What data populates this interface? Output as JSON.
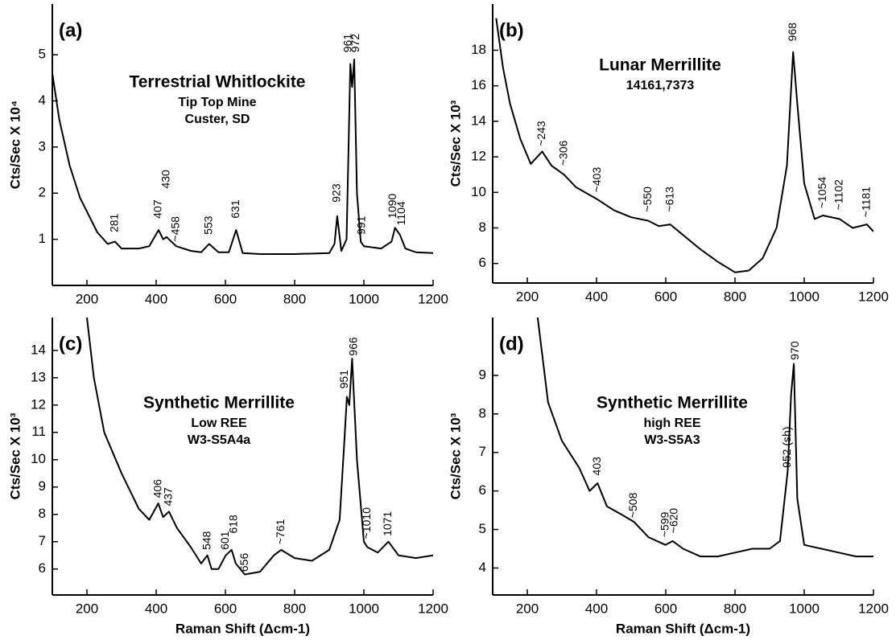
{
  "chart_data": [
    {
      "type": "line",
      "panel": "(a)",
      "title": "Terrestrial Whitlockite",
      "subtitles": [
        "Tip Top Mine",
        "Custer, SD"
      ],
      "ylabel": "Cts/Sec X 10⁴",
      "xlim": [
        100,
        1200
      ],
      "xticks": [
        200,
        400,
        600,
        800,
        1000,
        1200
      ],
      "ylim": [
        0,
        6.1
      ],
      "yticks": [
        1,
        2,
        3,
        4,
        5
      ],
      "color": "#000000",
      "x": [
        100,
        120,
        150,
        180,
        200,
        230,
        260,
        281,
        300,
        350,
        380,
        407,
        420,
        430,
        458,
        500,
        530,
        553,
        580,
        610,
        631,
        650,
        700,
        800,
        900,
        915,
        923,
        935,
        950,
        961,
        966,
        972,
        980,
        991,
        1000,
        1050,
        1080,
        1090,
        1104,
        1120,
        1150,
        1200
      ],
      "values": [
        4.6,
        3.6,
        2.6,
        1.9,
        1.6,
        1.15,
        0.9,
        0.95,
        0.8,
        0.8,
        0.85,
        1.2,
        1.0,
        1.05,
        0.85,
        0.75,
        0.72,
        0.9,
        0.72,
        0.72,
        1.2,
        0.7,
        0.68,
        0.68,
        0.7,
        0.9,
        1.5,
        0.75,
        1.0,
        4.8,
        4.3,
        4.9,
        2.0,
        0.95,
        0.85,
        0.8,
        0.95,
        1.25,
        1.1,
        0.8,
        0.72,
        0.7
      ],
      "annotations": [
        {
          "text": "281",
          "x": 281,
          "y": 1.15
        },
        {
          "text": "407",
          "x": 407,
          "y": 1.45
        },
        {
          "text": "430",
          "x": 430,
          "y": 2.1
        },
        {
          "text": "~458",
          "x": 458,
          "y": 0.95
        },
        {
          "text": "553",
          "x": 553,
          "y": 1.1
        },
        {
          "text": "631",
          "x": 631,
          "y": 1.45
        },
        {
          "text": "923",
          "x": 923,
          "y": 1.8
        },
        {
          "text": "961",
          "x": 955,
          "y": 5.05
        },
        {
          "text": "972",
          "x": 978,
          "y": 5.05
        },
        {
          "text": "991",
          "x": 995,
          "y": 1.1
        },
        {
          "text": "1090",
          "x": 1085,
          "y": 1.45
        },
        {
          "text": "1104",
          "x": 1110,
          "y": 1.3
        }
      ]
    },
    {
      "type": "line",
      "panel": "(b)",
      "title": "Lunar Merrillite",
      "subtitles": [
        "14161,7373"
      ],
      "ylabel": "Cts/Sec X 10³",
      "xlim": [
        100,
        1200
      ],
      "xticks": [
        200,
        400,
        600,
        800,
        1000,
        1200
      ],
      "ylim": [
        4.9,
        20.6
      ],
      "yticks": [
        6,
        8,
        10,
        12,
        14,
        16,
        18
      ],
      "color": "#000000",
      "x": [
        110,
        130,
        150,
        180,
        210,
        243,
        270,
        306,
        340,
        403,
        450,
        500,
        550,
        580,
        613,
        650,
        700,
        750,
        800,
        840,
        880,
        920,
        950,
        968,
        980,
        1000,
        1030,
        1054,
        1102,
        1140,
        1181,
        1200
      ],
      "values": [
        19.8,
        17,
        15,
        13,
        11.6,
        12.3,
        11.5,
        11,
        10.3,
        9.6,
        9,
        8.6,
        8.4,
        8.1,
        8.2,
        7.6,
        6.8,
        6.1,
        5.5,
        5.6,
        6.3,
        8,
        11.5,
        17.9,
        15,
        10.5,
        8.5,
        8.7,
        8.5,
        8,
        8.2,
        7.8
      ],
      "annotations": [
        {
          "text": "~243",
          "x": 243,
          "y": 12.6
        },
        {
          "text": "~306",
          "x": 306,
          "y": 11.5
        },
        {
          "text": "~403",
          "x": 403,
          "y": 10
        },
        {
          "text": "~550",
          "x": 550,
          "y": 8.9
        },
        {
          "text": "~613",
          "x": 613,
          "y": 8.9
        },
        {
          "text": "968",
          "x": 968,
          "y": 18.5
        },
        {
          "text": "~1054",
          "x": 1054,
          "y": 9.1
        },
        {
          "text": "~1102",
          "x": 1102,
          "y": 9
        },
        {
          "text": "~1181",
          "x": 1181,
          "y": 8.6
        }
      ]
    },
    {
      "type": "line",
      "panel": "(c)",
      "title": "Synthetic Merrillite",
      "subtitles": [
        "Low REE",
        "W3-S5A4a"
      ],
      "ylabel": "Cts/Sec X 10³",
      "xlabel": "Raman Shift (Δcm-1)",
      "xlim": [
        100,
        1200
      ],
      "xticks": [
        200,
        400,
        600,
        800,
        1000,
        1200
      ],
      "ylim": [
        5.05,
        15.2
      ],
      "yticks": [
        6,
        7,
        8,
        9,
        10,
        11,
        12,
        13,
        14
      ],
      "color": "#000000",
      "x": [
        200,
        220,
        250,
        300,
        350,
        380,
        406,
        420,
        437,
        460,
        500,
        530,
        548,
        560,
        580,
        601,
        618,
        630,
        656,
        700,
        740,
        761,
        800,
        850,
        900,
        930,
        945,
        951,
        958,
        966,
        980,
        1000,
        1010,
        1040,
        1071,
        1100,
        1150,
        1200
      ],
      "values": [
        15.2,
        13,
        11,
        9.5,
        8.2,
        7.8,
        8.4,
        7.9,
        8.1,
        7.5,
        6.8,
        6.2,
        6.5,
        6.0,
        6.0,
        6.5,
        6.7,
        6.2,
        5.8,
        5.9,
        6.5,
        6.7,
        6.4,
        6.3,
        6.7,
        7.8,
        11,
        12.3,
        12.0,
        13.7,
        10,
        7.0,
        6.8,
        6.6,
        7.0,
        6.5,
        6.4,
        6.5
      ],
      "annotations": [
        {
          "text": "406",
          "x": 406,
          "y": 8.6
        },
        {
          "text": "437",
          "x": 437,
          "y": 8.3
        },
        {
          "text": "548",
          "x": 548,
          "y": 6.7
        },
        {
          "text": "601",
          "x": 601,
          "y": 6.7
        },
        {
          "text": "618",
          "x": 625,
          "y": 7.3
        },
        {
          "text": "656",
          "x": 656,
          "y": 5.9
        },
        {
          "text": "~761",
          "x": 761,
          "y": 6.9
        },
        {
          "text": "951",
          "x": 945,
          "y": 12.6
        },
        {
          "text": "966",
          "x": 972,
          "y": 13.8
        },
        {
          "text": "~1010",
          "x": 1010,
          "y": 7.1
        },
        {
          "text": "1071",
          "x": 1071,
          "y": 7.2
        }
      ]
    },
    {
      "type": "line",
      "panel": "(d)",
      "title": "Synthetic Merrillite",
      "subtitles": [
        "high REE",
        "W3-S5A3"
      ],
      "ylabel": "Cts/Sec X 10³",
      "xlabel": "Raman Shift (Δcm-1)",
      "xlim": [
        100,
        1200
      ],
      "xticks": [
        200,
        400,
        600,
        800,
        1000,
        1200
      ],
      "ylim": [
        3.3,
        10.5
      ],
      "yticks": [
        4,
        5,
        6,
        7,
        8,
        9
      ],
      "color": "#000000",
      "x": [
        230,
        260,
        300,
        350,
        380,
        403,
        430,
        470,
        508,
        550,
        599,
        620,
        650,
        700,
        750,
        800,
        850,
        900,
        930,
        952,
        962,
        970,
        980,
        1000,
        1050,
        1100,
        1150,
        1200
      ],
      "values": [
        10.5,
        8.3,
        7.3,
        6.6,
        6.0,
        6.2,
        5.6,
        5.4,
        5.2,
        4.8,
        4.6,
        4.7,
        4.5,
        4.3,
        4.3,
        4.4,
        4.5,
        4.5,
        4.7,
        6.5,
        8.5,
        9.3,
        5.8,
        4.6,
        4.5,
        4.4,
        4.3,
        4.3
      ],
      "annotations": [
        {
          "text": "403",
          "x": 403,
          "y": 6.4
        },
        {
          "text": "~508",
          "x": 508,
          "y": 5.3
        },
        {
          "text": "~599",
          "x": 599,
          "y": 4.8
        },
        {
          "text": "~620",
          "x": 625,
          "y": 4.9
        },
        {
          "text": "952 (sh)",
          "x": 952,
          "y": 6.6
        },
        {
          "text": "970",
          "x": 975,
          "y": 9.4
        }
      ]
    }
  ]
}
